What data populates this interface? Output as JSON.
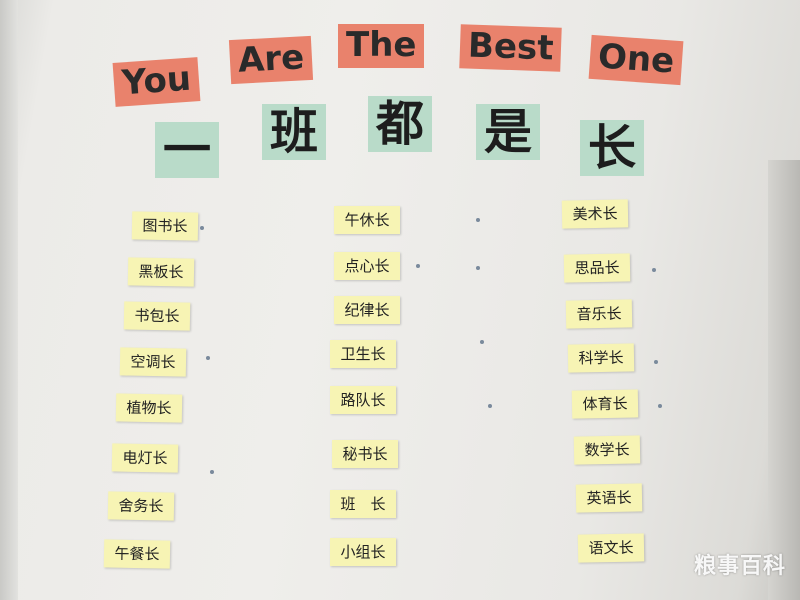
{
  "banner": {
    "english_words": [
      "You",
      "Are",
      "The",
      "Best",
      "One"
    ],
    "chinese_chars": [
      "一",
      "班",
      "都",
      "是",
      "长"
    ],
    "english_card_color": "#e9826c",
    "chinese_card_color": "#b9dbc9"
  },
  "columns": {
    "left": [
      "图书长",
      "黑板长",
      "书包长",
      "空调长",
      "植物长",
      "电灯长",
      "舍务长",
      "午餐长"
    ],
    "middle": [
      "午休长",
      "点心长",
      "纪律长",
      "卫生长",
      "路队长",
      "秘书长",
      "班　长",
      "小组长"
    ],
    "right": [
      "美术长",
      "思品长",
      "音乐长",
      "科学长",
      "体育长",
      "数学长",
      "英语长",
      "语文长"
    ]
  },
  "label_color": "#f7f4b4",
  "watermark": "粮事百科"
}
